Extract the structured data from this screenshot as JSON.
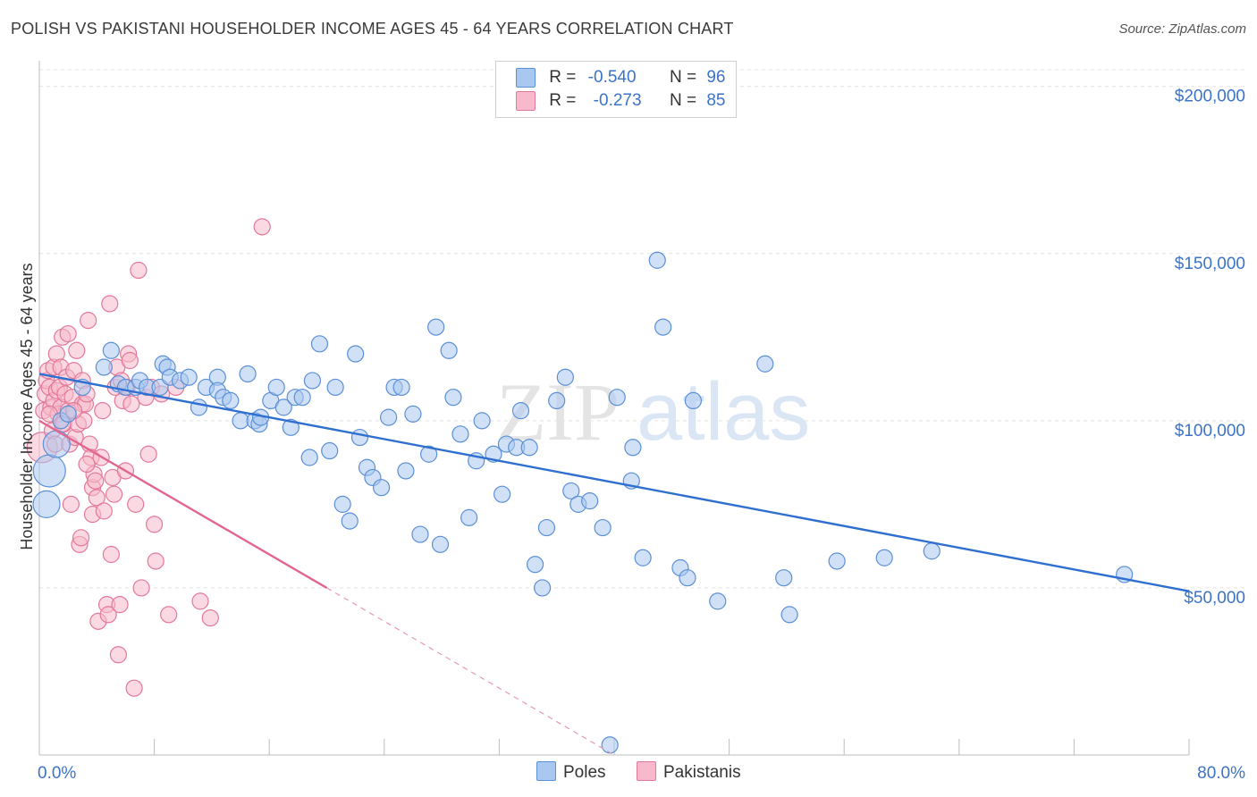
{
  "header": {
    "title": "POLISH VS PAKISTANI HOUSEHOLDER INCOME AGES 45 - 64 YEARS CORRELATION CHART",
    "source": "Source: ZipAtlas.com"
  },
  "legend": {
    "rows": [
      {
        "r_label": "R =",
        "r_value": "-0.540",
        "n_label": "N =",
        "n_value": "96",
        "color": "#a9c8f0",
        "border": "#5b8fd6"
      },
      {
        "r_label": "R =",
        "r_value": "-0.273",
        "n_label": "N =",
        "n_value": "85",
        "color": "#f7b9cb",
        "border": "#e3789b"
      }
    ]
  },
  "bottom_legend": [
    {
      "label": "Poles",
      "color": "#a9c8f0",
      "border": "#5b8fd6"
    },
    {
      "label": "Pakistanis",
      "color": "#f7b9cb",
      "border": "#e3789b"
    }
  ],
  "watermark": {
    "zip": "ZIP",
    "atlas": "atlas"
  },
  "chart_data": {
    "type": "scatter",
    "title": "POLISH VS PAKISTANI HOUSEHOLDER INCOME AGES 45 - 64 YEARS CORRELATION CHART",
    "xlabel": "",
    "ylabel": "Householder Income Ages 45 - 64 years",
    "xlim": [
      0,
      80
    ],
    "ylim": [
      0,
      205000
    ],
    "x_tick_labels": [
      "0.0%",
      "80.0%"
    ],
    "y_ticks": [
      50000,
      100000,
      150000,
      200000
    ],
    "y_tick_labels": [
      "$50,000",
      "$100,000",
      "$150,000",
      "$200,000"
    ],
    "grid": true,
    "legend_position": "top-center",
    "series": [
      {
        "name": "Poles",
        "color": "#5b8fd6",
        "fill": "#a9c8f0",
        "trend": {
          "x": [
            0,
            80
          ],
          "y": [
            114000,
            49000
          ]
        },
        "points": [
          [
            0.5,
            75000
          ],
          [
            0.7,
            85000
          ],
          [
            1.2,
            93000
          ],
          [
            1.5,
            100000
          ],
          [
            2.0,
            102000
          ],
          [
            3.0,
            110000
          ],
          [
            4.5,
            116000
          ],
          [
            5.0,
            121000
          ],
          [
            5.5,
            111000
          ],
          [
            6.0,
            110000
          ],
          [
            6.7,
            110000
          ],
          [
            7.0,
            112000
          ],
          [
            7.5,
            110000
          ],
          [
            8.4,
            110000
          ],
          [
            8.6,
            117000
          ],
          [
            8.9,
            116000
          ],
          [
            9.1,
            113000
          ],
          [
            9.8,
            112000
          ],
          [
            10.4,
            113000
          ],
          [
            11.1,
            104000
          ],
          [
            11.6,
            110000
          ],
          [
            12.4,
            113000
          ],
          [
            12.4,
            109000
          ],
          [
            12.8,
            107000
          ],
          [
            13.3,
            106000
          ],
          [
            14.0,
            100000
          ],
          [
            14.5,
            114000
          ],
          [
            15.0,
            100000
          ],
          [
            15.3,
            99000
          ],
          [
            15.4,
            101000
          ],
          [
            16.1,
            106000
          ],
          [
            16.5,
            110000
          ],
          [
            17.0,
            104000
          ],
          [
            17.5,
            98000
          ],
          [
            17.8,
            107000
          ],
          [
            18.3,
            107000
          ],
          [
            18.8,
            89000
          ],
          [
            19.0,
            112000
          ],
          [
            19.5,
            123000
          ],
          [
            20.2,
            91000
          ],
          [
            20.6,
            110000
          ],
          [
            21.1,
            75000
          ],
          [
            21.6,
            70000
          ],
          [
            22.0,
            120000
          ],
          [
            22.3,
            95000
          ],
          [
            22.8,
            86000
          ],
          [
            23.2,
            83000
          ],
          [
            23.8,
            80000
          ],
          [
            24.3,
            101000
          ],
          [
            24.7,
            110000
          ],
          [
            25.2,
            110000
          ],
          [
            25.5,
            85000
          ],
          [
            26.0,
            102000
          ],
          [
            26.5,
            66000
          ],
          [
            27.1,
            90000
          ],
          [
            27.6,
            128000
          ],
          [
            27.9,
            63000
          ],
          [
            28.5,
            121000
          ],
          [
            28.8,
            107000
          ],
          [
            29.3,
            96000
          ],
          [
            29.9,
            71000
          ],
          [
            30.4,
            88000
          ],
          [
            30.8,
            100000
          ],
          [
            31.6,
            90000
          ],
          [
            32.2,
            78000
          ],
          [
            32.5,
            93000
          ],
          [
            33.2,
            92000
          ],
          [
            33.5,
            103000
          ],
          [
            34.1,
            92000
          ],
          [
            34.5,
            57000
          ],
          [
            35.0,
            50000
          ],
          [
            35.3,
            68000
          ],
          [
            36.0,
            106000
          ],
          [
            36.6,
            113000
          ],
          [
            37.0,
            79000
          ],
          [
            37.5,
            75000
          ],
          [
            38.3,
            76000
          ],
          [
            39.2,
            68000
          ],
          [
            40.2,
            107000
          ],
          [
            41.2,
            82000
          ],
          [
            41.3,
            92000
          ],
          [
            42.0,
            59000
          ],
          [
            43.0,
            148000
          ],
          [
            43.4,
            128000
          ],
          [
            44.6,
            56000
          ],
          [
            45.1,
            53000
          ],
          [
            45.5,
            106000
          ],
          [
            47.2,
            46000
          ],
          [
            50.5,
            117000
          ],
          [
            51.8,
            53000
          ],
          [
            52.2,
            42000
          ],
          [
            55.5,
            58000
          ],
          [
            58.8,
            59000
          ],
          [
            62.1,
            61000
          ],
          [
            75.5,
            54000
          ],
          [
            39.7,
            3000
          ]
        ]
      },
      {
        "name": "Pakistanis",
        "color": "#e3789b",
        "fill": "#f7b9cb",
        "trend": {
          "x": [
            0,
            20
          ],
          "y": [
            100000,
            50000
          ]
        },
        "trend_extension": {
          "x": [
            20,
            40
          ],
          "y": [
            50000,
            0
          ]
        },
        "points": [
          [
            0.2,
            92000
          ],
          [
            0.3,
            103000
          ],
          [
            0.4,
            108000
          ],
          [
            0.5,
            112000
          ],
          [
            0.6,
            115000
          ],
          [
            0.7,
            110000
          ],
          [
            0.8,
            104000
          ],
          [
            0.9,
            97000
          ],
          [
            1.0,
            106000
          ],
          [
            1.0,
            116000
          ],
          [
            1.1,
            93000
          ],
          [
            1.2,
            109000
          ],
          [
            1.2,
            120000
          ],
          [
            1.3,
            102000
          ],
          [
            1.4,
            110000
          ],
          [
            1.5,
            104000
          ],
          [
            1.5,
            116000
          ],
          [
            1.6,
            125000
          ],
          [
            1.7,
            99000
          ],
          [
            1.8,
            108000
          ],
          [
            1.9,
            113000
          ],
          [
            2.0,
            126000
          ],
          [
            2.0,
            103000
          ],
          [
            2.1,
            93000
          ],
          [
            2.2,
            75000
          ],
          [
            2.3,
            107000
          ],
          [
            2.4,
            115000
          ],
          [
            2.5,
            95000
          ],
          [
            2.6,
            121000
          ],
          [
            2.7,
            99000
          ],
          [
            2.8,
            63000
          ],
          [
            2.9,
            65000
          ],
          [
            3.0,
            112000
          ],
          [
            3.0,
            105000
          ],
          [
            3.1,
            100000
          ],
          [
            3.2,
            105000
          ],
          [
            3.3,
            108000
          ],
          [
            3.4,
            130000
          ],
          [
            3.5,
            93000
          ],
          [
            3.6,
            89000
          ],
          [
            3.7,
            80000
          ],
          [
            3.7,
            72000
          ],
          [
            3.8,
            84000
          ],
          [
            3.9,
            82000
          ],
          [
            4.0,
            77000
          ],
          [
            4.1,
            40000
          ],
          [
            4.3,
            89000
          ],
          [
            4.5,
            73000
          ],
          [
            4.7,
            45000
          ],
          [
            4.8,
            42000
          ],
          [
            4.9,
            135000
          ],
          [
            5.0,
            60000
          ],
          [
            5.1,
            83000
          ],
          [
            5.2,
            78000
          ],
          [
            5.3,
            110000
          ],
          [
            5.4,
            116000
          ],
          [
            5.5,
            30000
          ],
          [
            5.6,
            45000
          ],
          [
            5.7,
            112000
          ],
          [
            5.8,
            106000
          ],
          [
            6.0,
            85000
          ],
          [
            6.1,
            110000
          ],
          [
            6.2,
            120000
          ],
          [
            6.3,
            118000
          ],
          [
            6.4,
            105000
          ],
          [
            6.6,
            20000
          ],
          [
            6.7,
            75000
          ],
          [
            6.9,
            145000
          ],
          [
            7.1,
            50000
          ],
          [
            7.4,
            107000
          ],
          [
            7.6,
            90000
          ],
          [
            7.8,
            110000
          ],
          [
            8.0,
            69000
          ],
          [
            8.1,
            58000
          ],
          [
            8.5,
            108000
          ],
          [
            9.0,
            42000
          ],
          [
            9.5,
            110000
          ],
          [
            11.2,
            46000
          ],
          [
            11.9,
            41000
          ],
          [
            15.5,
            158000
          ],
          [
            0.7,
            102000
          ],
          [
            1.6,
            99000
          ],
          [
            2.4,
            103000
          ],
          [
            3.3,
            87000
          ],
          [
            4.4,
            103000
          ]
        ]
      }
    ]
  }
}
